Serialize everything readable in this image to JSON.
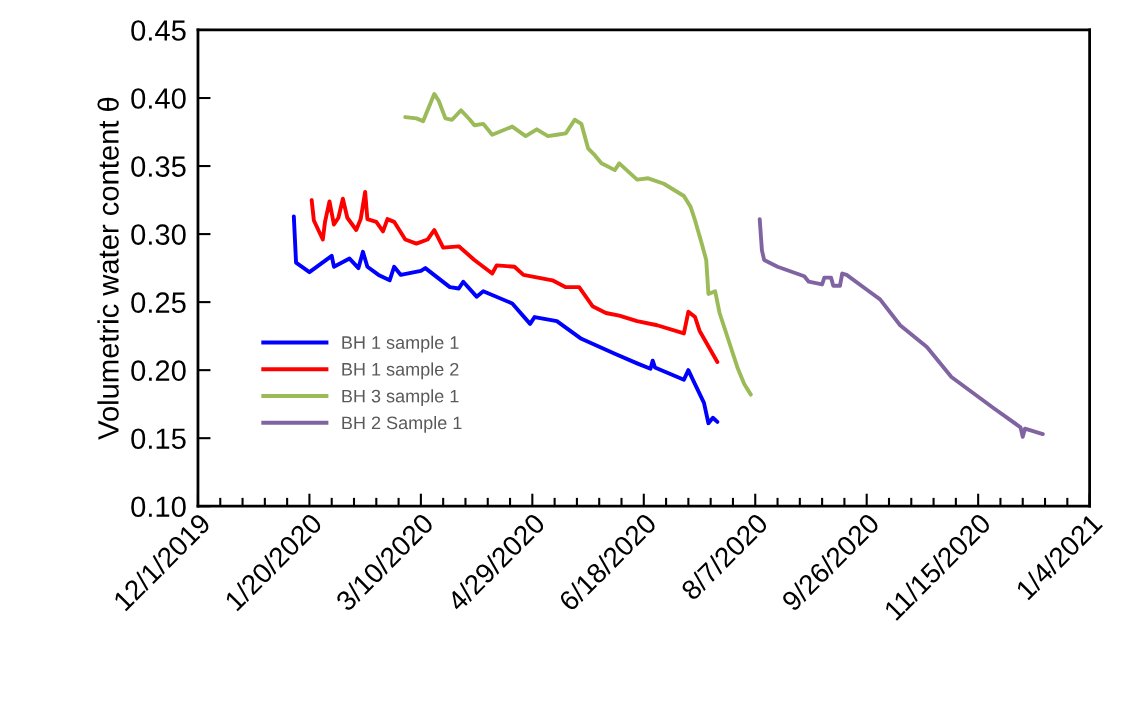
{
  "chart_data": {
    "type": "line",
    "ylabel": "Volumetric water content θ",
    "xlim": [
      "2019-12-01",
      "2021-01-04"
    ],
    "ylim": [
      0.1,
      0.45
    ],
    "yticks": [
      {
        "value": 0.1,
        "label": "0.10"
      },
      {
        "value": 0.15,
        "label": "0.15"
      },
      {
        "value": 0.2,
        "label": "0.20"
      },
      {
        "value": 0.25,
        "label": "0.25"
      },
      {
        "value": 0.3,
        "label": "0.30"
      },
      {
        "value": 0.35,
        "label": "0.35"
      },
      {
        "value": 0.4,
        "label": "0.40"
      },
      {
        "value": 0.45,
        "label": "0.45"
      }
    ],
    "xticks": [
      {
        "value": "2019-12-01",
        "label": "12/1/2019"
      },
      {
        "value": "2019-12-11",
        "label": null
      },
      {
        "value": "2019-12-21",
        "label": null
      },
      {
        "value": "2019-12-31",
        "label": null
      },
      {
        "value": "2020-01-10",
        "label": null
      },
      {
        "value": "2020-01-20",
        "label": "1/20/2020"
      },
      {
        "value": "2020-01-30",
        "label": null
      },
      {
        "value": "2020-02-09",
        "label": null
      },
      {
        "value": "2020-02-19",
        "label": null
      },
      {
        "value": "2020-02-29",
        "label": null
      },
      {
        "value": "2020-03-10",
        "label": "3/10/2020"
      },
      {
        "value": "2020-03-20",
        "label": null
      },
      {
        "value": "2020-03-30",
        "label": null
      },
      {
        "value": "2020-04-09",
        "label": null
      },
      {
        "value": "2020-04-19",
        "label": null
      },
      {
        "value": "2020-04-29",
        "label": "4/29/2020"
      },
      {
        "value": "2020-05-09",
        "label": null
      },
      {
        "value": "2020-05-19",
        "label": null
      },
      {
        "value": "2020-05-29",
        "label": null
      },
      {
        "value": "2020-06-08",
        "label": null
      },
      {
        "value": "2020-06-18",
        "label": "6/18/2020"
      },
      {
        "value": "2020-06-28",
        "label": null
      },
      {
        "value": "2020-07-08",
        "label": null
      },
      {
        "value": "2020-07-18",
        "label": null
      },
      {
        "value": "2020-07-28",
        "label": null
      },
      {
        "value": "2020-08-07",
        "label": "8/7/2020"
      },
      {
        "value": "2020-08-17",
        "label": null
      },
      {
        "value": "2020-08-27",
        "label": null
      },
      {
        "value": "2020-09-06",
        "label": null
      },
      {
        "value": "2020-09-16",
        "label": null
      },
      {
        "value": "2020-09-26",
        "label": "9/26/2020"
      },
      {
        "value": "2020-10-06",
        "label": null
      },
      {
        "value": "2020-10-16",
        "label": null
      },
      {
        "value": "2020-10-26",
        "label": null
      },
      {
        "value": "2020-11-05",
        "label": null
      },
      {
        "value": "2020-11-15",
        "label": "11/15/2020"
      },
      {
        "value": "2020-11-25",
        "label": null
      },
      {
        "value": "2020-12-05",
        "label": null
      },
      {
        "value": "2020-12-15",
        "label": null
      },
      {
        "value": "2020-12-25",
        "label": null
      },
      {
        "value": "2021-01-04",
        "label": "1/4/2021"
      }
    ],
    "grid": false,
    "legend": "bottom left",
    "marker": "none",
    "line_style": "solid",
    "series": [
      {
        "name": "BH 1 sample 1",
        "color": "#0000ff",
        "x": [
          "2020-01-13",
          "2020-01-14",
          "2020-01-20",
          "2020-01-30",
          "2020-01-31",
          "2020-02-07",
          "2020-02-11",
          "2020-02-13",
          "2020-02-15",
          "2020-02-20",
          "2020-02-25",
          "2020-02-27",
          "2020-03-01",
          "2020-03-10",
          "2020-03-12",
          "2020-03-23",
          "2020-03-27",
          "2020-03-29",
          "2020-04-04",
          "2020-04-07",
          "2020-04-20",
          "2020-04-28",
          "2020-04-30",
          "2020-05-10",
          "2020-05-21",
          "2020-06-05",
          "2020-06-15",
          "2020-06-21",
          "2020-06-22",
          "2020-06-23",
          "2020-07-06",
          "2020-07-08",
          "2020-07-10",
          "2020-07-15",
          "2020-07-17",
          "2020-07-19",
          "2020-07-21"
        ],
        "values": [
          0.313,
          0.279,
          0.272,
          0.284,
          0.276,
          0.282,
          0.275,
          0.287,
          0.276,
          0.27,
          0.266,
          0.276,
          0.27,
          0.273,
          0.275,
          0.261,
          0.26,
          0.265,
          0.254,
          0.258,
          0.249,
          0.234,
          0.239,
          0.236,
          0.223,
          0.212,
          0.205,
          0.201,
          0.207,
          0.202,
          0.193,
          0.2,
          0.193,
          0.176,
          0.161,
          0.165,
          0.162
        ]
      },
      {
        "name": "BH 1 sample 2",
        "color": "#ff0000",
        "x": [
          "2020-01-21",
          "2020-01-22",
          "2020-01-26",
          "2020-01-27",
          "2020-01-29",
          "2020-01-31",
          "2020-02-02",
          "2020-02-04",
          "2020-02-06",
          "2020-02-10",
          "2020-02-12",
          "2020-02-14",
          "2020-02-15",
          "2020-02-19",
          "2020-02-22",
          "2020-02-24",
          "2020-02-27",
          "2020-03-03",
          "2020-03-08",
          "2020-03-13",
          "2020-03-16",
          "2020-03-20",
          "2020-03-27",
          "2020-04-03",
          "2020-04-11",
          "2020-04-13",
          "2020-04-21",
          "2020-04-25",
          "2020-05-08",
          "2020-05-14",
          "2020-05-20",
          "2020-05-26",
          "2020-06-01",
          "2020-06-07",
          "2020-06-15",
          "2020-06-24",
          "2020-07-06",
          "2020-07-08",
          "2020-07-11",
          "2020-07-13",
          "2020-07-21"
        ],
        "values": [
          0.325,
          0.31,
          0.296,
          0.309,
          0.324,
          0.307,
          0.312,
          0.326,
          0.312,
          0.303,
          0.311,
          0.331,
          0.311,
          0.309,
          0.302,
          0.311,
          0.309,
          0.296,
          0.293,
          0.296,
          0.303,
          0.29,
          0.291,
          0.281,
          0.271,
          0.277,
          0.276,
          0.27,
          0.266,
          0.261,
          0.261,
          0.247,
          0.242,
          0.24,
          0.236,
          0.233,
          0.227,
          0.243,
          0.239,
          0.229,
          0.206
        ]
      },
      {
        "name": "BH 3 sample 1",
        "color": "#9bbb59",
        "x": [
          "2020-03-03",
          "2020-03-08",
          "2020-03-11",
          "2020-03-13",
          "2020-03-16",
          "2020-03-18",
          "2020-03-21",
          "2020-03-24",
          "2020-03-28",
          "2020-04-01",
          "2020-04-03",
          "2020-04-07",
          "2020-04-11",
          "2020-04-20",
          "2020-04-26",
          "2020-05-01",
          "2020-05-06",
          "2020-05-10",
          "2020-05-14",
          "2020-05-18",
          "2020-05-21",
          "2020-05-24",
          "2020-05-27",
          "2020-05-30",
          "2020-06-05",
          "2020-06-07",
          "2020-06-15",
          "2020-06-20",
          "2020-06-27",
          "2020-07-06",
          "2020-07-09",
          "2020-07-11",
          "2020-07-14",
          "2020-07-16",
          "2020-07-17",
          "2020-07-20",
          "2020-07-22",
          "2020-07-30",
          "2020-08-02",
          "2020-08-05"
        ],
        "values": [
          0.386,
          0.385,
          0.383,
          0.391,
          0.403,
          0.398,
          0.385,
          0.384,
          0.391,
          0.384,
          0.38,
          0.381,
          0.373,
          0.379,
          0.372,
          0.377,
          0.372,
          0.373,
          0.374,
          0.384,
          0.381,
          0.363,
          0.358,
          0.352,
          0.347,
          0.352,
          0.34,
          0.341,
          0.337,
          0.328,
          0.32,
          0.31,
          0.293,
          0.281,
          0.256,
          0.258,
          0.242,
          0.202,
          0.19,
          0.182
        ]
      },
      {
        "name": "BH 2 Sample 1",
        "color": "#8064a2",
        "x": [
          "2020-08-09",
          "2020-08-10",
          "2020-08-11",
          "2020-08-17",
          "2020-08-29",
          "2020-08-31",
          "2020-09-06",
          "2020-09-07",
          "2020-09-10",
          "2020-09-11",
          "2020-09-14",
          "2020-09-15",
          "2020-09-17",
          "2020-09-27",
          "2020-10-02",
          "2020-10-11",
          "2020-10-23",
          "2020-11-03",
          "2020-11-22",
          "2020-12-04",
          "2020-12-05",
          "2020-12-06",
          "2020-12-14"
        ],
        "values": [
          0.311,
          0.288,
          0.281,
          0.276,
          0.269,
          0.265,
          0.263,
          0.268,
          0.268,
          0.262,
          0.262,
          0.271,
          0.27,
          0.258,
          0.252,
          0.233,
          0.217,
          0.195,
          0.172,
          0.158,
          0.151,
          0.157,
          0.153
        ]
      }
    ]
  }
}
